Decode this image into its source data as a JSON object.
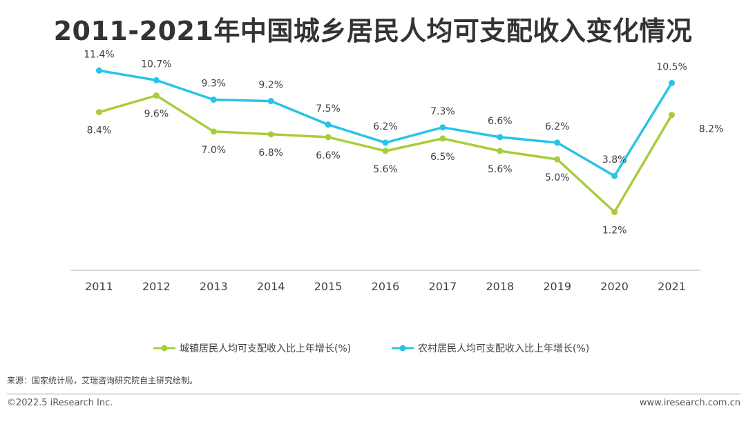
{
  "title": "2011-2021年中国城乡居民人均可支配收入变化情况",
  "source": "来源：国家统计局，艾瑞咨询研究院自主研究绘制。",
  "footer": {
    "copyright": "©2022.5 iResearch Inc.",
    "website": "www.iresearch.com.cn"
  },
  "colors": {
    "urban": "#a8cd3a",
    "rural": "#29c3e8",
    "axis": "#bfbfbf",
    "text": "#404040"
  },
  "chart_data": {
    "type": "line",
    "title": "2011-2021年中国城乡居民人均可支配收入变化情况",
    "xlabel": "",
    "ylabel": "",
    "x": [
      "2011",
      "2012",
      "2013",
      "2014",
      "2015",
      "2016",
      "2017",
      "2018",
      "2019",
      "2020",
      "2021"
    ],
    "series": [
      {
        "name": "城镇居民人均可支配收入比上年增长(%)",
        "values": [
          8.4,
          9.6,
          7.0,
          6.8,
          6.6,
          5.6,
          6.5,
          5.6,
          5.0,
          1.2,
          8.2
        ],
        "labels": [
          "8.4%",
          "9.6%",
          "7.0%",
          "6.8%",
          "6.6%",
          "5.6%",
          "6.5%",
          "5.6%",
          "5.0%",
          "1.2%",
          "8.2%"
        ]
      },
      {
        "name": "农村居民人均可支配收入比上年增长(%)",
        "values": [
          11.4,
          10.7,
          9.3,
          9.2,
          7.5,
          6.2,
          7.3,
          6.6,
          6.2,
          3.8,
          10.5
        ],
        "labels": [
          "11.4%",
          "10.7%",
          "9.3%",
          "9.2%",
          "7.5%",
          "6.2%",
          "7.3%",
          "6.6%",
          "6.2%",
          "3.8%",
          "10.5%"
        ]
      }
    ],
    "ylim": [
      -3,
      14
    ],
    "grid": false,
    "legend": "bottom"
  }
}
